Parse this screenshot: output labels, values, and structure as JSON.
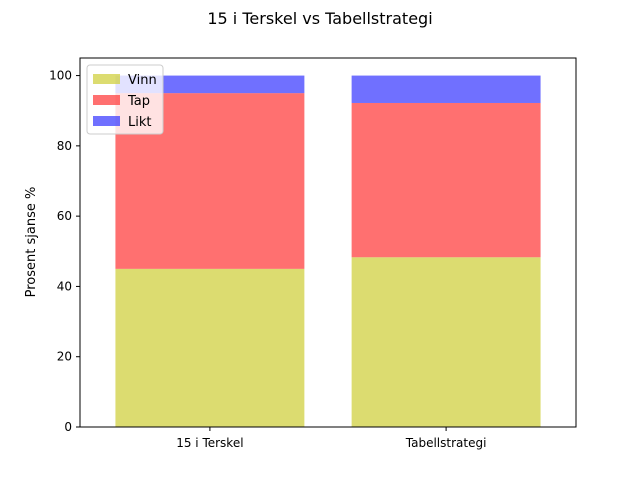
{
  "chart_data": {
    "type": "bar",
    "stacked": true,
    "title": "15 i Terskel vs Tabellstrategi",
    "xlabel": "",
    "ylabel": "Prosent sjanse %",
    "categories": [
      "15 i Terskel",
      "Tabellstrategi"
    ],
    "series": [
      {
        "name": "Vinn",
        "values": [
          45.0,
          48.3
        ],
        "color": "#d0d040"
      },
      {
        "name": "Tap",
        "values": [
          50.0,
          43.9
        ],
        "color": "#ff4040"
      },
      {
        "name": "Likt",
        "values": [
          5.0,
          7.8
        ],
        "color": "#4040ff"
      }
    ],
    "ylim": [
      0,
      105
    ],
    "yticks": [
      0,
      20,
      40,
      60,
      80,
      100
    ],
    "grid": false,
    "legend": "top-left"
  }
}
